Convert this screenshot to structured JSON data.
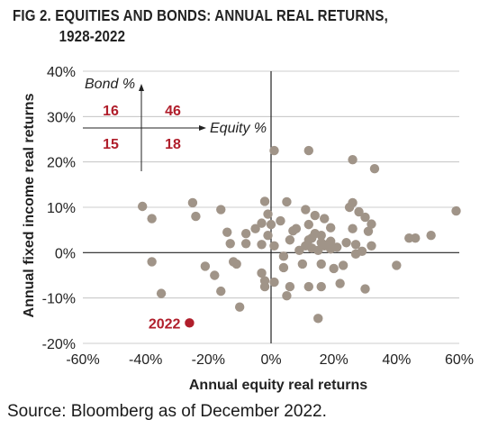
{
  "title_line1": "FIG 2. EQUITIES AND BONDS: ANNUAL REAL RETURNS,",
  "title_line2": "1928-2022",
  "source": "Source: Bloomberg as of December 2022.",
  "inset": {
    "y_label": "Bond %",
    "x_label": "Equity %",
    "quadrants": {
      "top_left": "16",
      "top_right": "46",
      "bottom_left": "15",
      "bottom_right": "18"
    }
  },
  "colors": {
    "point": "#a09488",
    "highlight": "#b01e2b",
    "axis": "#222222",
    "grid": "#bbbbbb"
  },
  "chart_data": {
    "type": "scatter",
    "xlabel": "Annual equity real returns",
    "ylabel": "Annual fixed income real returns",
    "xlim": [
      -60,
      60
    ],
    "ylim": [
      -20,
      40
    ],
    "x_ticks": [
      "-60%",
      "-40%",
      "-20%",
      "0%",
      "20%",
      "40%",
      "60%"
    ],
    "y_ticks": [
      "-20%",
      "-10%",
      "0%",
      "10%",
      "20%",
      "30%",
      "40%"
    ],
    "grid": "horizontal",
    "highlight": {
      "label": "2022",
      "x": -26,
      "y": -15.5
    },
    "points": [
      [
        -41,
        10.2
      ],
      [
        -38,
        7.5
      ],
      [
        -38,
        -2
      ],
      [
        -35,
        -9
      ],
      [
        -25,
        11
      ],
      [
        -24,
        8
      ],
      [
        -21,
        -3
      ],
      [
        -18,
        -5
      ],
      [
        -16,
        -8.5
      ],
      [
        -16,
        9.5
      ],
      [
        -14,
        4.5
      ],
      [
        -13,
        2
      ],
      [
        -12,
        -2
      ],
      [
        -11,
        -2.5
      ],
      [
        -10,
        -12
      ],
      [
        -8,
        2
      ],
      [
        -8,
        4.2
      ],
      [
        -5,
        5.3
      ],
      [
        -3,
        6.5
      ],
      [
        -3,
        1.8
      ],
      [
        -3,
        -4.5
      ],
      [
        -2,
        -6.2
      ],
      [
        -2,
        -7.5
      ],
      [
        -2,
        11.3
      ],
      [
        -1,
        8.5
      ],
      [
        0,
        6.2
      ],
      [
        -1,
        3.8
      ],
      [
        1,
        22.5
      ],
      [
        1,
        1.5
      ],
      [
        1,
        -6.5
      ],
      [
        3,
        7
      ],
      [
        4,
        -0.8
      ],
      [
        4,
        -3.3
      ],
      [
        5,
        11.2
      ],
      [
        5,
        -9.5
      ],
      [
        6,
        2.8
      ],
      [
        6,
        -7.5
      ],
      [
        7,
        4.8
      ],
      [
        8,
        5.3
      ],
      [
        9,
        0.5
      ],
      [
        10,
        -2.5
      ],
      [
        11,
        9.5
      ],
      [
        11,
        1.5
      ],
      [
        12,
        6.2
      ],
      [
        12,
        2.8
      ],
      [
        12,
        22.5
      ],
      [
        12,
        -7.5
      ],
      [
        13,
        3.2
      ],
      [
        13,
        1
      ],
      [
        14,
        8.2
      ],
      [
        14,
        4.2
      ],
      [
        15,
        0.5
      ],
      [
        15,
        -14.5
      ],
      [
        16,
        2.2
      ],
      [
        16,
        3.8
      ],
      [
        16,
        -2.5
      ],
      [
        16,
        -7.5
      ],
      [
        17,
        7.5
      ],
      [
        17,
        1.5
      ],
      [
        18,
        1.8
      ],
      [
        19,
        5.5
      ],
      [
        19,
        2.5
      ],
      [
        19,
        0.8
      ],
      [
        20,
        -3.5
      ],
      [
        21,
        1.2
      ],
      [
        22,
        -6.8
      ],
      [
        23,
        -2.8
      ],
      [
        24,
        2.2
      ],
      [
        25,
        10
      ],
      [
        26,
        11
      ],
      [
        26,
        5.3
      ],
      [
        26,
        20.5
      ],
      [
        27,
        -0.3
      ],
      [
        27,
        1.8
      ],
      [
        28,
        9
      ],
      [
        29,
        0.3
      ],
      [
        30,
        -8
      ],
      [
        30,
        7.8
      ],
      [
        31,
        4.7
      ],
      [
        32,
        1.5
      ],
      [
        32,
        6.3
      ],
      [
        33,
        18.5
      ],
      [
        40,
        -2.8
      ],
      [
        44,
        3.2
      ],
      [
        46,
        3.2
      ],
      [
        51,
        3.8
      ],
      [
        59,
        9.2
      ]
    ]
  }
}
